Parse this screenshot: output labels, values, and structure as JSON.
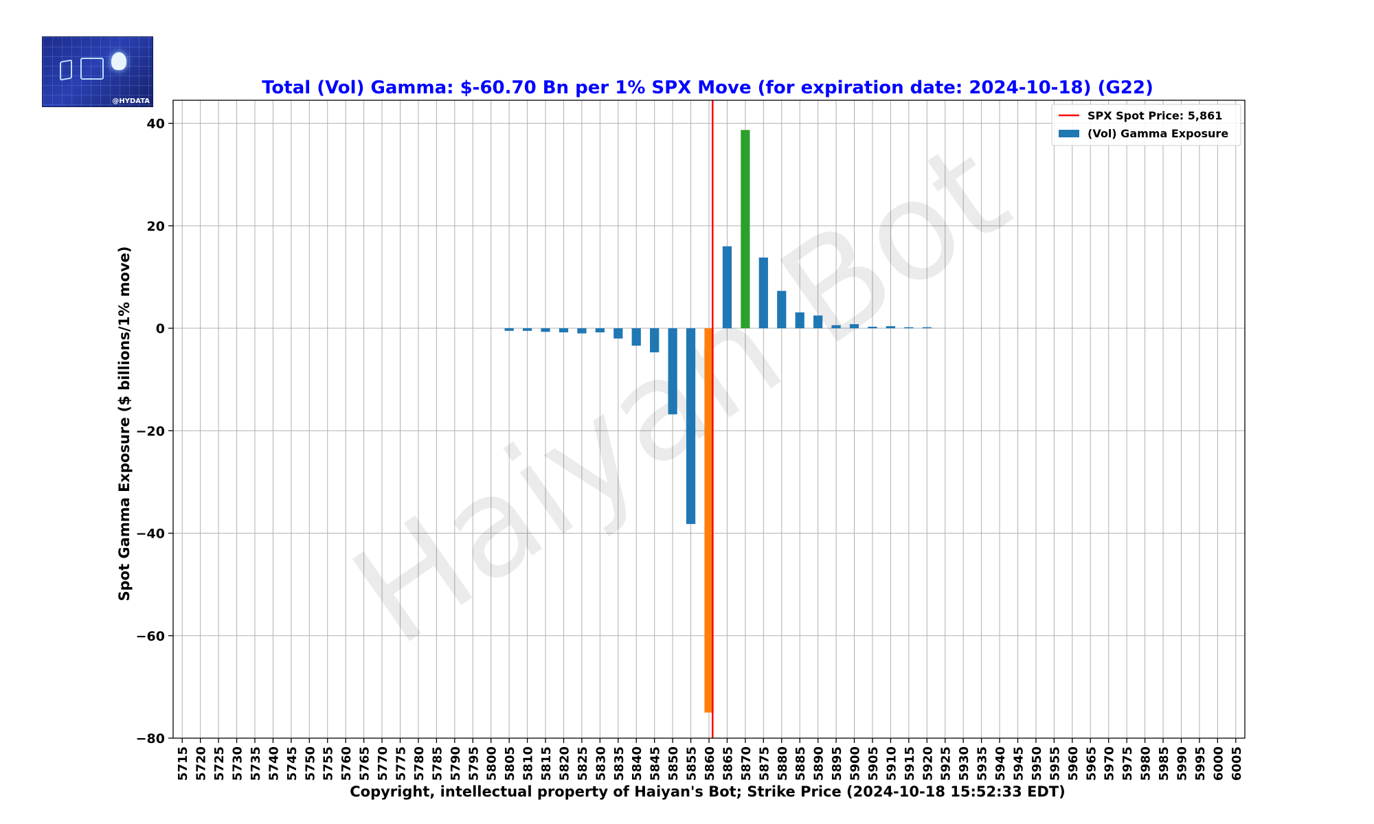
{
  "chart_data": {
    "type": "bar",
    "title": "Total (Vol) Gamma: $-60.70 Bn per 1% SPX Move (for expiration date: 2024-10-18) (G22)",
    "xlabel": "Copyright, intellectual property of Haiyan's Bot; Strike Price (2024-10-18 15:52:33 EDT)",
    "ylabel": "Spot Gamma Exposure ($ billions/1% move)",
    "ylim": [
      -80,
      44.5
    ],
    "yticks": [
      40,
      20,
      0,
      -20,
      -40,
      -60,
      -80
    ],
    "ytick_labels": [
      "40",
      "20",
      "0",
      "−20",
      "−40",
      "−60",
      "−80"
    ],
    "grid": true,
    "legend_position": "top-right",
    "watermark": "Haiyan Bot",
    "logo_text": "@HYDATA",
    "spot_line": {
      "label": "SPX Spot Price: 5,861",
      "value": 5861,
      "color": "#ff0000"
    },
    "series": [
      {
        "name": "(Vol) Gamma Exposure",
        "color": "#1f77b4",
        "categories": [
          "5715",
          "5720",
          "5725",
          "5730",
          "5735",
          "5740",
          "5745",
          "5750",
          "5755",
          "5760",
          "5765",
          "5770",
          "5775",
          "5780",
          "5785",
          "5790",
          "5795",
          "5800",
          "5805",
          "5810",
          "5815",
          "5820",
          "5825",
          "5830",
          "5835",
          "5840",
          "5845",
          "5850",
          "5855",
          "5860",
          "5865",
          "5870",
          "5875",
          "5880",
          "5885",
          "5890",
          "5895",
          "5900",
          "5905",
          "5910",
          "5915",
          "5920",
          "5925",
          "5930",
          "5935",
          "5940",
          "5945",
          "5950",
          "5955",
          "5960",
          "5965",
          "5970",
          "5975",
          "5980",
          "5985",
          "5990",
          "5995",
          "6000",
          "6005"
        ],
        "values": [
          0,
          0,
          0,
          0,
          0,
          0,
          0,
          0,
          0,
          0,
          0,
          0,
          0,
          0,
          0,
          0,
          0,
          0,
          -0.5,
          -0.5,
          -0.7,
          -0.8,
          -1.0,
          -0.8,
          -2.0,
          -3.4,
          -4.7,
          -16.8,
          -38.2,
          -75.0,
          16.0,
          38.7,
          13.8,
          7.3,
          3.1,
          2.5,
          0.6,
          0.8,
          0.3,
          0.4,
          0.2,
          0.2,
          0,
          0,
          0,
          0,
          0,
          0,
          0,
          0,
          0,
          0,
          0,
          0,
          0,
          0,
          0,
          0,
          0
        ],
        "highlight": {
          "5860": "#ff7f0e",
          "5870": "#2ca02c"
        }
      }
    ]
  }
}
